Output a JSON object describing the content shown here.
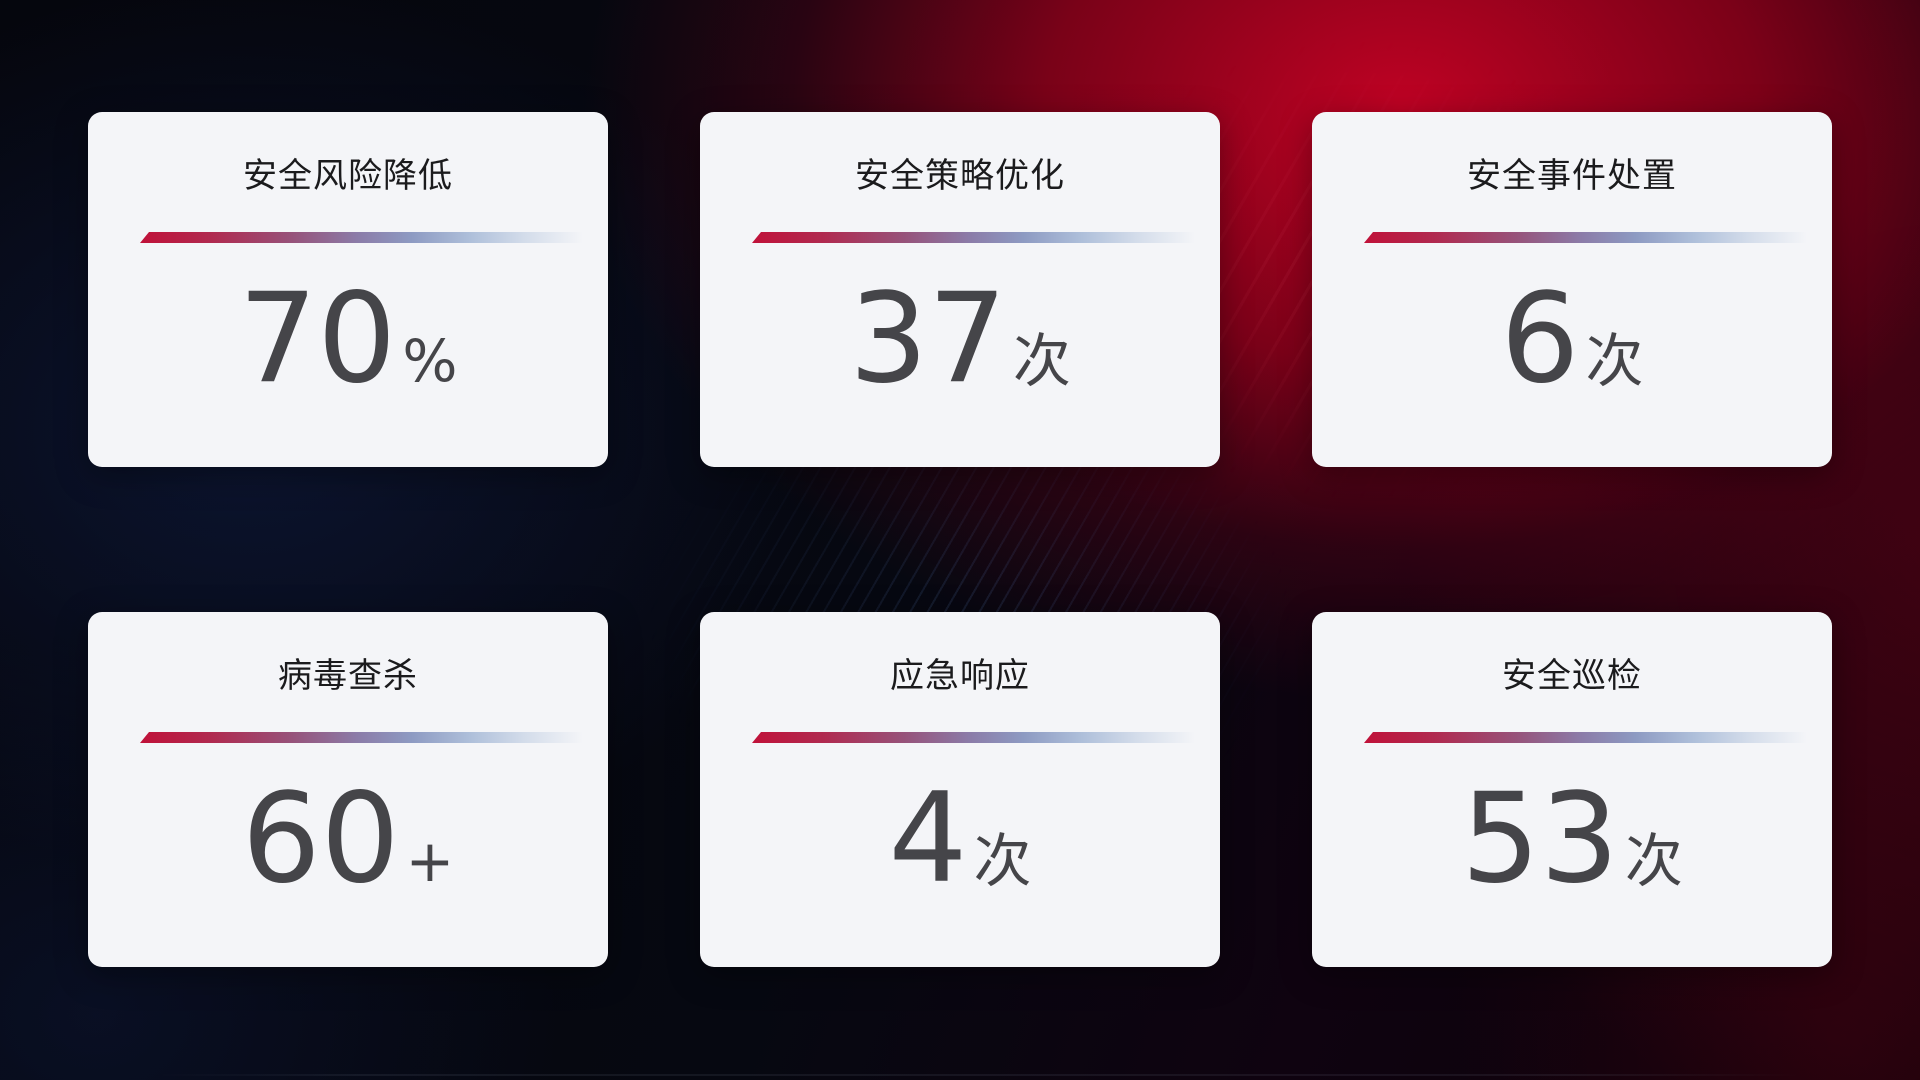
{
  "cards": [
    {
      "title": "安全风险降低",
      "value": "70",
      "unit": "%"
    },
    {
      "title": "安全策略优化",
      "value": "37",
      "unit": "次"
    },
    {
      "title": "安全事件处置",
      "value": "6",
      "unit": "次"
    },
    {
      "title": "病毒查杀",
      "value": "60",
      "unit": "+"
    },
    {
      "title": "应急响应",
      "value": "4",
      "unit": "次"
    },
    {
      "title": "安全巡检",
      "value": "53",
      "unit": "次"
    }
  ],
  "colors": {
    "accent_red": "#c01139",
    "divider_steel_blue": "#aebfda",
    "card_background": "#f4f5f8",
    "title_text": "#1b1b1d",
    "value_text": "#454549",
    "background_red_glow": "#c60224",
    "background_blue_glow": "#111f4a",
    "background_base": "#05060d"
  }
}
